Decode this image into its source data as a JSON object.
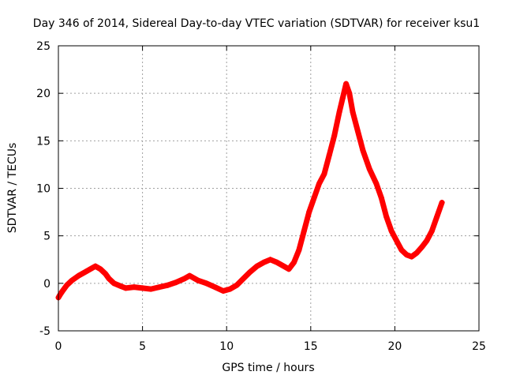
{
  "chart_data": {
    "type": "scatter",
    "title": "Day 346 of 2014, Sidereal Day-to-day VTEC variation (SDTVAR) for receiver ksu1",
    "xlabel": "GPS time / hours",
    "ylabel": "SDTVAR / TECUs",
    "xlim": [
      0,
      25
    ],
    "ylim": [
      -5,
      25
    ],
    "xticks": [
      "0",
      "5",
      "10",
      "15",
      "20",
      "25"
    ],
    "yticks": [
      "-5",
      "0",
      "5",
      "10",
      "15",
      "20",
      "25"
    ],
    "grid": true,
    "marker": "+",
    "series": [
      {
        "name": "SDTVAR",
        "color": "#ff0000",
        "x": [
          0,
          0.1,
          0.25,
          0.5,
          0.8,
          1.2,
          1.6,
          2.0,
          2.2,
          2.5,
          2.8,
          3.0,
          3.3,
          3.7,
          4.0,
          4.5,
          5.0,
          5.5,
          6.0,
          6.5,
          7.0,
          7.5,
          7.8,
          8.3,
          8.8,
          9.3,
          9.8,
          10.2,
          10.6,
          11.0,
          11.4,
          11.8,
          12.2,
          12.6,
          13.0,
          13.4,
          13.7,
          14.0,
          14.3,
          14.6,
          14.9,
          15.2,
          15.5,
          15.8,
          16.1,
          16.4,
          16.7,
          16.9,
          17.1,
          17.3,
          17.5,
          17.8,
          18.1,
          18.5,
          18.9,
          19.2,
          19.5,
          19.8,
          20.1,
          20.4,
          20.7,
          21.0,
          21.3,
          21.6,
          21.9,
          22.2,
          22.5,
          22.8
        ],
        "y": [
          -1.5,
          -1.2,
          -0.8,
          -0.2,
          0.3,
          0.8,
          1.2,
          1.6,
          1.8,
          1.5,
          1.0,
          0.5,
          0.0,
          -0.3,
          -0.5,
          -0.4,
          -0.5,
          -0.6,
          -0.4,
          -0.2,
          0.1,
          0.5,
          0.8,
          0.3,
          0.0,
          -0.4,
          -0.8,
          -0.6,
          -0.2,
          0.5,
          1.2,
          1.8,
          2.2,
          2.5,
          2.2,
          1.8,
          1.5,
          2.2,
          3.5,
          5.5,
          7.5,
          9.0,
          10.5,
          11.5,
          13.5,
          15.5,
          18.0,
          19.5,
          21.0,
          20.0,
          18.0,
          16.0,
          14.0,
          12.0,
          10.5,
          9.0,
          7.0,
          5.5,
          4.5,
          3.5,
          3.0,
          2.8,
          3.2,
          3.8,
          4.5,
          5.5,
          7.0,
          8.5
        ]
      }
    ]
  }
}
